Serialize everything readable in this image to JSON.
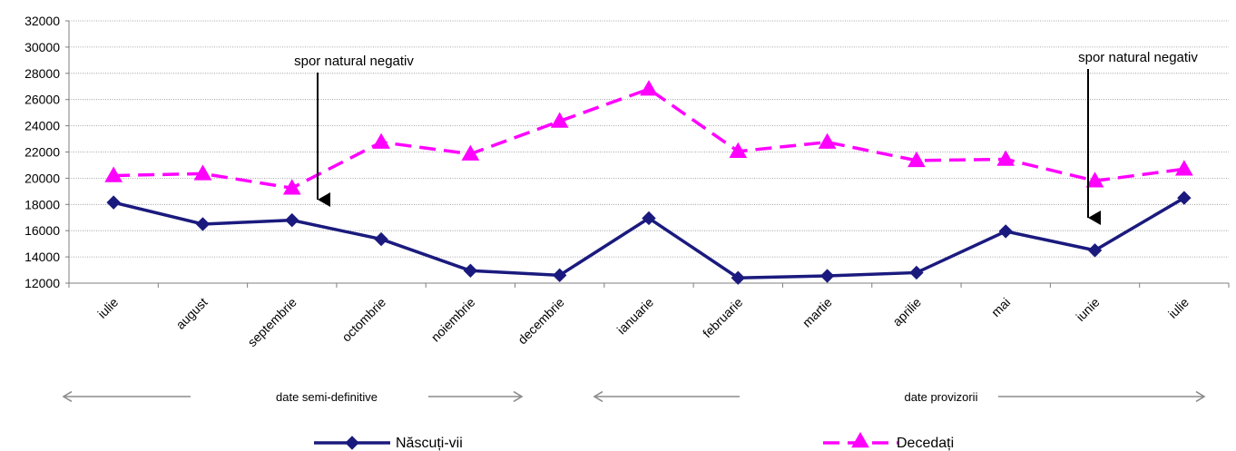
{
  "chart_data": {
    "type": "line",
    "categories": [
      "iulie",
      "august",
      "septembrie",
      "octombrie",
      "noiembrie",
      "decembrie",
      "ianuarie",
      "februarie",
      "martie",
      "aprilie",
      "mai",
      "iunie",
      "iulie"
    ],
    "series": [
      {
        "name": "Născuți-vii",
        "color": "#1a1a7e",
        "marker": "diamond",
        "dash": "solid",
        "values": [
          18150,
          16500,
          16800,
          15350,
          12950,
          12600,
          16950,
          12400,
          12550,
          12800,
          15950,
          14500,
          18500
        ]
      },
      {
        "name": "Decedați",
        "color": "#ff00ff",
        "marker": "triangle",
        "dash": "dashed",
        "values": [
          20200,
          20350,
          19250,
          22750,
          21850,
          24350,
          26800,
          22050,
          22750,
          21350,
          21450,
          19800,
          20700
        ]
      }
    ],
    "ylim": [
      12000,
      32000
    ],
    "yticks": [
      12000,
      14000,
      16000,
      18000,
      20000,
      22000,
      24000,
      26000,
      28000,
      30000,
      32000
    ],
    "grid": true,
    "legend": "bottom",
    "annotations": [
      {
        "text": "spor natural negativ",
        "category_index": 2
      },
      {
        "text": "spor natural negativ",
        "category_index": 11
      }
    ],
    "periods": [
      {
        "text": "date semi-definitive",
        "from_index": 0,
        "to_index": 5
      },
      {
        "text": "date provizorii",
        "from_index": 6,
        "to_index": 12
      }
    ]
  }
}
